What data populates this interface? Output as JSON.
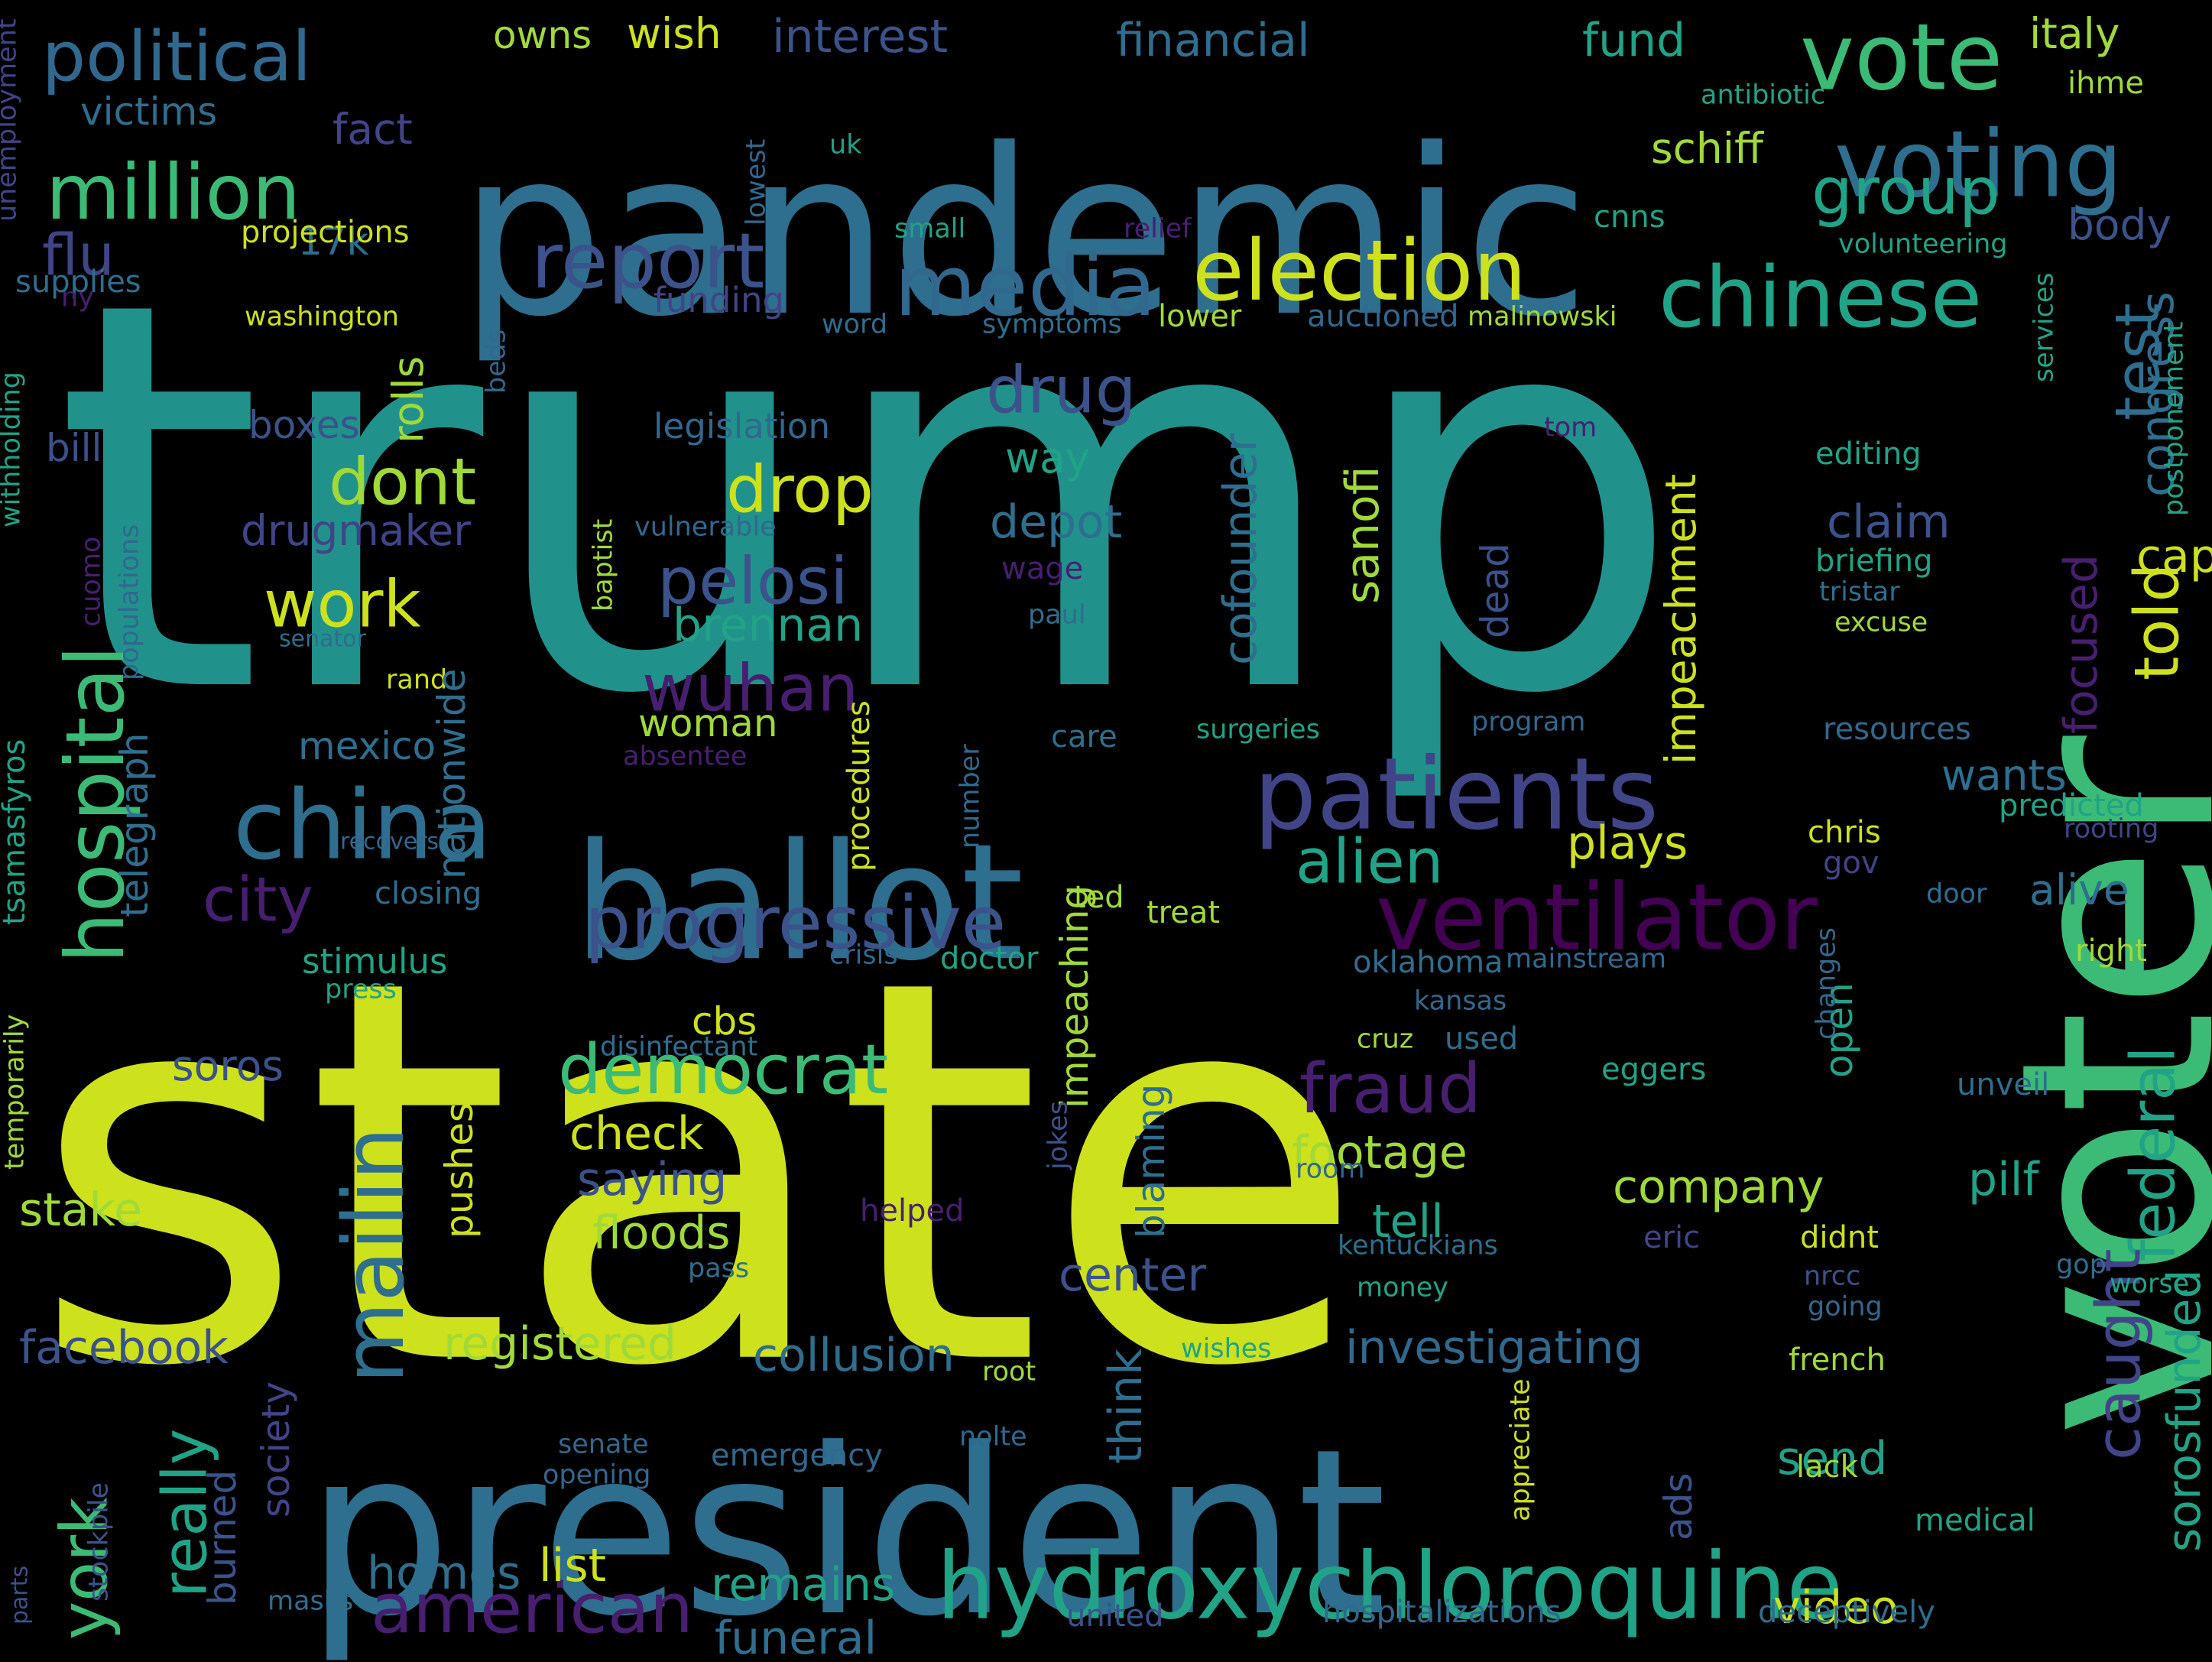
{
  "cloud": {
    "words": [
      {
        "t": "trump",
        "c": "#21918c"
      },
      {
        "t": "state",
        "c": "#cde11d"
      },
      {
        "t": "pandemic",
        "c": "#2e6e8e"
      },
      {
        "t": "president",
        "c": "#2e6e8e"
      },
      {
        "t": "voter",
        "c": "#3bbb75"
      },
      {
        "t": "ballot",
        "c": "#2e6e8e"
      },
      {
        "t": "hydroxychloroquine",
        "c": "#20a386"
      },
      {
        "t": "voting",
        "c": "#2e6e8e"
      },
      {
        "t": "vote",
        "c": "#3bbb75"
      },
      {
        "t": "media",
        "c": "#31688e"
      },
      {
        "t": "election",
        "c": "#cde11d"
      },
      {
        "t": "chinese",
        "c": "#20a386"
      },
      {
        "t": "patients",
        "c": "#414487"
      },
      {
        "t": "china",
        "c": "#2e6e8e"
      },
      {
        "t": "ventilator",
        "c": "#440154"
      },
      {
        "t": "progressive",
        "c": "#3b528b"
      },
      {
        "t": "hospital",
        "c": "#3bbb75"
      },
      {
        "t": "mailin",
        "c": "#2e6e8e"
      },
      {
        "t": "report",
        "c": "#3b528b"
      },
      {
        "t": "million",
        "c": "#3bbb75"
      },
      {
        "t": "political",
        "c": "#31688e"
      },
      {
        "t": "democrat",
        "c": "#3bbb75"
      },
      {
        "t": "fraud",
        "c": "#481f70"
      },
      {
        "t": "american",
        "c": "#481f70"
      },
      {
        "t": "group",
        "c": "#20a386"
      },
      {
        "t": "test",
        "c": "#2e6e8e"
      },
      {
        "t": "drug",
        "c": "#3b528b"
      },
      {
        "t": "drop",
        "c": "#cde11d"
      },
      {
        "t": "dont",
        "c": "#a0da39"
      },
      {
        "t": "work",
        "c": "#cde11d"
      },
      {
        "t": "pelosi",
        "c": "#3b528b"
      },
      {
        "t": "wuhan",
        "c": "#481f70"
      },
      {
        "t": "alien",
        "c": "#20a386"
      },
      {
        "t": "city",
        "c": "#481f70"
      },
      {
        "t": "federal",
        "c": "#20a386"
      },
      {
        "t": "caught",
        "c": "#414487"
      },
      {
        "t": "told",
        "c": "#cde11d"
      },
      {
        "t": "york",
        "c": "#3bbb75"
      },
      {
        "t": "really",
        "c": "#20a386"
      },
      {
        "t": "flu",
        "c": "#414487"
      },
      {
        "t": "political_",
        "c": "#31688e"
      },
      {
        "t": "company",
        "c": "#a0da39"
      },
      {
        "t": "footage",
        "c": "#a0da39"
      },
      {
        "t": "collusion",
        "c": "#2e6e8e"
      },
      {
        "t": "investigating",
        "c": "#31688e"
      },
      {
        "t": "registered",
        "c": "#a0da39"
      },
      {
        "t": "facebook",
        "c": "#3b528b"
      },
      {
        "t": "funeral",
        "c": "#2e6e8e"
      },
      {
        "t": "remains",
        "c": "#20a386"
      },
      {
        "t": "homes",
        "c": "#2e6e8e"
      },
      {
        "t": "list",
        "c": "#cde11d"
      },
      {
        "t": "video",
        "c": "#cde11d"
      },
      {
        "t": "send",
        "c": "#20a386"
      },
      {
        "t": "tell",
        "c": "#20a386"
      },
      {
        "t": "check",
        "c": "#cde11d"
      },
      {
        "t": "saying",
        "c": "#3b528b"
      },
      {
        "t": "floods",
        "c": "#a0da39"
      },
      {
        "t": "stake",
        "c": "#a0da39"
      },
      {
        "t": "soros",
        "c": "#3b528b"
      },
      {
        "t": "plays",
        "c": "#cde11d"
      },
      {
        "t": "wants",
        "c": "#2e6e8e"
      },
      {
        "t": "alive",
        "c": "#2e6e8e"
      },
      {
        "t": "pilf",
        "c": "#20a386"
      },
      {
        "t": "cap",
        "c": "#cde11d"
      },
      {
        "t": "claim",
        "c": "#3b528b"
      },
      {
        "t": "brennan",
        "c": "#20a386"
      },
      {
        "t": "way",
        "c": "#20a386"
      },
      {
        "t": "depot",
        "c": "#2e6e8e"
      },
      {
        "t": "boxes",
        "c": "#3b528b"
      },
      {
        "t": "bill",
        "c": "#3b528b"
      },
      {
        "t": "drugmaker",
        "c": "#414487"
      },
      {
        "t": "mexico",
        "c": "#2e6e8e"
      },
      {
        "t": "woman",
        "c": "#a0da39"
      },
      {
        "t": "cbs",
        "c": "#cde11d"
      },
      {
        "t": "stimulus",
        "c": "#20a386"
      },
      {
        "t": "schiff",
        "c": "#a0da39"
      },
      {
        "t": "body",
        "c": "#3b528b"
      },
      {
        "t": "italy",
        "c": "#a0da39"
      },
      {
        "t": "fund",
        "c": "#20a386"
      },
      {
        "t": "financial",
        "c": "#2e6e8e"
      },
      {
        "t": "interest",
        "c": "#3b528b"
      },
      {
        "t": "wish",
        "c": "#cde11d"
      },
      {
        "t": "owns",
        "c": "#a0da39"
      },
      {
        "t": "victims",
        "c": "#2e6e8e"
      },
      {
        "t": "fact",
        "c": "#414487"
      },
      {
        "t": "17k",
        "c": "#2e6e8e"
      },
      {
        "t": "projections",
        "c": "#cde11d"
      },
      {
        "t": "supplies",
        "c": "#2e6e8e"
      },
      {
        "t": "washington",
        "c": "#cde11d"
      },
      {
        "t": "funding",
        "c": "#414487"
      },
      {
        "t": "legislation",
        "c": "#31688e"
      },
      {
        "t": "symptoms",
        "c": "#2e6e8e"
      },
      {
        "t": "lower",
        "c": "#a0da39"
      },
      {
        "t": "auctioned",
        "c": "#31688e"
      },
      {
        "t": "malinowski",
        "c": "#a0da39"
      },
      {
        "t": "cnns",
        "c": "#20a386"
      },
      {
        "t": "volunteering",
        "c": "#20a386"
      },
      {
        "t": "antibiotic",
        "c": "#20a386"
      },
      {
        "t": "ihme",
        "c": "#a0da39"
      },
      {
        "t": "uk",
        "c": "#20a386"
      },
      {
        "t": "small",
        "c": "#20a386"
      },
      {
        "t": "relief",
        "c": "#481f70"
      },
      {
        "t": "word",
        "c": "#2e6e8e"
      },
      {
        "t": "editing",
        "c": "#20a386"
      },
      {
        "t": "briefing",
        "c": "#20a386"
      },
      {
        "t": "tristar",
        "c": "#2e6e8e"
      },
      {
        "t": "excuse",
        "c": "#a0da39"
      },
      {
        "t": "vulnerable",
        "c": "#31688e"
      },
      {
        "t": "wage",
        "c": "#481f70"
      },
      {
        "t": "paul",
        "c": "#2e6e8e"
      },
      {
        "t": "senator",
        "c": "#2e6e8e"
      },
      {
        "t": "rand",
        "c": "#cde11d"
      },
      {
        "t": "absentee",
        "c": "#481f70"
      },
      {
        "t": "care",
        "c": "#2e6e8e"
      },
      {
        "t": "surgeries",
        "c": "#20a386"
      },
      {
        "t": "program",
        "c": "#31688e"
      },
      {
        "t": "resources",
        "c": "#31688e"
      },
      {
        "t": "predicted",
        "c": "#20a386"
      },
      {
        "t": "rooting",
        "c": "#414487"
      },
      {
        "t": "chris",
        "c": "#cde11d"
      },
      {
        "t": "gov",
        "c": "#414487"
      },
      {
        "t": "door",
        "c": "#2e6e8e"
      },
      {
        "t": "ted",
        "c": "#a0da39"
      },
      {
        "t": "treat",
        "c": "#a0da39"
      },
      {
        "t": "crisis",
        "c": "#31688e"
      },
      {
        "t": "doctor",
        "c": "#20a386"
      },
      {
        "t": "oklahoma",
        "c": "#2e6e8e"
      },
      {
        "t": "mainstream",
        "c": "#31688e"
      },
      {
        "t": "right",
        "c": "#a0da39"
      },
      {
        "t": "kansas",
        "c": "#31688e"
      },
      {
        "t": "used",
        "c": "#2e6e8e"
      },
      {
        "t": "cruz",
        "c": "#a0da39"
      },
      {
        "t": "eggers",
        "c": "#20a386"
      },
      {
        "t": "unveil",
        "c": "#2e6e8e"
      },
      {
        "t": "disinfectant",
        "c": "#2e6e8e"
      },
      {
        "t": "press",
        "c": "#20a386"
      },
      {
        "t": "closing",
        "c": "#2e6e8e"
      },
      {
        "t": "recovers",
        "c": "#31688e"
      },
      {
        "t": "room",
        "c": "#31688e"
      },
      {
        "t": "helped",
        "c": "#481f70"
      },
      {
        "t": "eric",
        "c": "#414487"
      },
      {
        "t": "didnt",
        "c": "#cde11d"
      },
      {
        "t": "kentuckians",
        "c": "#2e6e8e"
      },
      {
        "t": "nrcc",
        "c": "#3b528b"
      },
      {
        "t": "gop",
        "c": "#2e6e8e"
      },
      {
        "t": "worse",
        "c": "#20a386"
      },
      {
        "t": "going",
        "c": "#31688e"
      },
      {
        "t": "pass",
        "c": "#2e6e8e"
      },
      {
        "t": "money",
        "c": "#20a386"
      },
      {
        "t": "center",
        "c": "#3b528b"
      },
      {
        "t": "wishes",
        "c": "#20a386"
      },
      {
        "t": "french",
        "c": "#a0da39"
      },
      {
        "t": "nolte",
        "c": "#31688e"
      },
      {
        "t": "root",
        "c": "#a0da39"
      },
      {
        "t": "senate",
        "c": "#31688e"
      },
      {
        "t": "opening",
        "c": "#31688e"
      },
      {
        "t": "emergency",
        "c": "#31688e"
      },
      {
        "t": "lack",
        "c": "#a0da39"
      },
      {
        "t": "medical",
        "c": "#20a386"
      },
      {
        "t": "parts",
        "c": "#3b528b"
      },
      {
        "t": "masks",
        "c": "#2e6e8e"
      },
      {
        "t": "united",
        "c": "#3b528b"
      },
      {
        "t": "hospitalizations",
        "c": "#31688e"
      },
      {
        "t": "deceptively",
        "c": "#2e6e8e"
      },
      {
        "t": "ny",
        "c": "#481f70"
      },
      {
        "t": "tom",
        "c": "#481f70"
      },
      {
        "t": "unemployment",
        "c": "#414487"
      },
      {
        "t": "withholding",
        "c": "#20a386"
      },
      {
        "t": "tsamasfyros",
        "c": "#20a386"
      },
      {
        "t": "temporarily",
        "c": "#a0da39"
      },
      {
        "t": "populations",
        "c": "#31688e"
      },
      {
        "t": "cuomo",
        "c": "#481f70"
      },
      {
        "t": "telegraph",
        "c": "#2e6e8e"
      },
      {
        "t": "nationwide",
        "c": "#2e6e8e"
      },
      {
        "t": "rolls",
        "c": "#a0da39"
      },
      {
        "t": "cofounder",
        "c": "#2e6e8e"
      },
      {
        "t": "sanofi",
        "c": "#a0da39"
      },
      {
        "t": "dead",
        "c": "#3b528b"
      },
      {
        "t": "impeachment",
        "c": "#cde11d"
      },
      {
        "t": "impeaching",
        "c": "#a0da39"
      },
      {
        "t": "blaming",
        "c": "#2e6e8e"
      },
      {
        "t": "think",
        "c": "#2e6e8e"
      },
      {
        "t": "pushes",
        "c": "#cde11d"
      },
      {
        "t": "society",
        "c": "#414487"
      },
      {
        "t": "burned",
        "c": "#3b528b"
      },
      {
        "t": "stockpile",
        "c": "#3b528b"
      },
      {
        "t": "baptist",
        "c": "#a0da39"
      },
      {
        "t": "lowest",
        "c": "#31688e"
      },
      {
        "t": "beds",
        "c": "#31688e"
      },
      {
        "t": "procedures",
        "c": "#cde11d"
      },
      {
        "t": "number",
        "c": "#31688e"
      },
      {
        "t": "jokes",
        "c": "#3b528b"
      },
      {
        "t": "ads",
        "c": "#3b528b"
      },
      {
        "t": "open",
        "c": "#20a386"
      },
      {
        "t": "focused",
        "c": "#481f70"
      },
      {
        "t": "congress",
        "c": "#2e6e8e"
      },
      {
        "t": "services",
        "c": "#20a386"
      },
      {
        "t": "postponement",
        "c": "#20a386"
      },
      {
        "t": "sorosfunded",
        "c": "#20a386"
      },
      {
        "t": "changes",
        "c": "#31688e"
      },
      {
        "t": "appreciate",
        "c": "#cde11d"
      }
    ]
  }
}
